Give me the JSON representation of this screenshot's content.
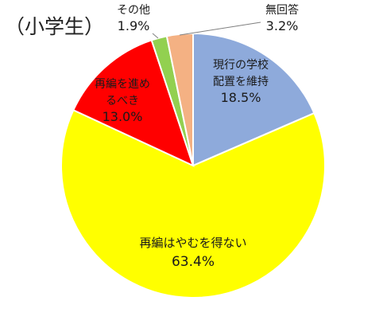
{
  "chart_data": {
    "type": "pie",
    "title": "（小学生）",
    "slices": [
      {
        "label": "現行の学校配置を維持",
        "label_lines": [
          "現行の学校",
          "配置を維持"
        ],
        "value": 18.5,
        "value_label": "18.5%",
        "color": "#8eaadb"
      },
      {
        "label": "再編はやむを得ない",
        "label_lines": [
          "再編はやむを得ない"
        ],
        "value": 63.4,
        "value_label": "63.4%",
        "color": "#ffff00"
      },
      {
        "label": "再編を進めるべき",
        "label_lines": [
          "再編を進め",
          "るべき"
        ],
        "value": 13.0,
        "value_label": "13.0%",
        "color": "#ff0000"
      },
      {
        "label": "その他",
        "label_lines": [
          "その他"
        ],
        "value": 1.9,
        "value_label": "1.9%",
        "color": "#92d050"
      },
      {
        "label": "無回答",
        "label_lines": [
          "無回答"
        ],
        "value": 3.2,
        "value_label": "3.2%",
        "color": "#f4b183"
      }
    ],
    "start_angle_deg": 0,
    "direction": "clockwise",
    "legend": "none"
  }
}
